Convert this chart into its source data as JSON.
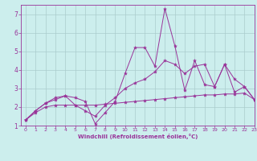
{
  "background_color": "#cceeed",
  "grid_color": "#aacccc",
  "line_color": "#993399",
  "xlabel": "Windchill (Refroidissement éolien,°C)",
  "xlim": [
    -0.5,
    23
  ],
  "ylim": [
    1,
    7.5
  ],
  "yticks": [
    1,
    2,
    3,
    4,
    5,
    6,
    7
  ],
  "xticks": [
    0,
    1,
    2,
    3,
    4,
    5,
    6,
    7,
    8,
    9,
    10,
    11,
    12,
    13,
    14,
    15,
    16,
    17,
    18,
    19,
    20,
    21,
    22,
    23
  ],
  "series": [
    {
      "x": [
        0,
        1,
        2,
        3,
        4,
        5,
        6,
        7,
        8,
        9,
        10,
        11,
        12,
        13,
        14,
        15,
        16,
        17,
        18,
        19,
        20,
        21,
        22,
        23
      ],
      "y": [
        1.3,
        1.7,
        2.0,
        2.1,
        2.1,
        2.1,
        2.1,
        2.1,
        2.15,
        2.2,
        2.25,
        2.3,
        2.35,
        2.4,
        2.45,
        2.5,
        2.55,
        2.6,
        2.65,
        2.65,
        2.7,
        2.7,
        2.75,
        2.4
      ]
    },
    {
      "x": [
        0,
        1,
        2,
        3,
        4,
        5,
        6,
        7,
        8,
        9,
        10,
        11,
        12,
        13,
        14,
        15,
        16,
        17,
        18,
        19,
        20,
        21,
        22,
        23
      ],
      "y": [
        1.3,
        1.8,
        2.2,
        2.4,
        2.6,
        2.1,
        1.8,
        1.5,
        2.1,
        2.5,
        3.0,
        3.3,
        3.5,
        3.9,
        4.5,
        4.3,
        3.8,
        4.2,
        4.3,
        3.1,
        4.3,
        3.5,
        3.1,
        2.4
      ]
    },
    {
      "x": [
        0,
        1,
        2,
        3,
        4,
        5,
        6,
        7,
        8,
        9,
        10,
        11,
        12,
        13,
        14,
        15,
        16,
        17,
        18,
        19,
        20,
        21,
        22,
        23
      ],
      "y": [
        1.3,
        1.8,
        2.2,
        2.5,
        2.6,
        2.5,
        2.3,
        1.1,
        1.7,
        2.3,
        3.8,
        5.2,
        5.2,
        4.2,
        7.3,
        5.3,
        2.9,
        4.5,
        3.2,
        3.1,
        4.3,
        2.8,
        3.1,
        2.4
      ]
    }
  ]
}
